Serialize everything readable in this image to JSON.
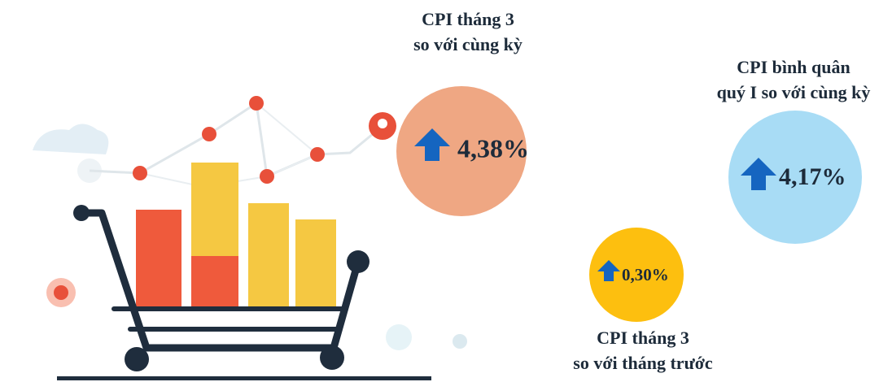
{
  "items": [
    {
      "label": [
        "CPI tháng 3",
        "so với cùng kỳ"
      ],
      "value": "4,38%"
    },
    {
      "label": [
        "CPI bình quân",
        "quý I so với cùng kỳ"
      ],
      "value": "4,17%"
    },
    {
      "label": [
        "CPI tháng 3",
        "so với tháng trước"
      ],
      "value": "0,30%"
    }
  ]
}
